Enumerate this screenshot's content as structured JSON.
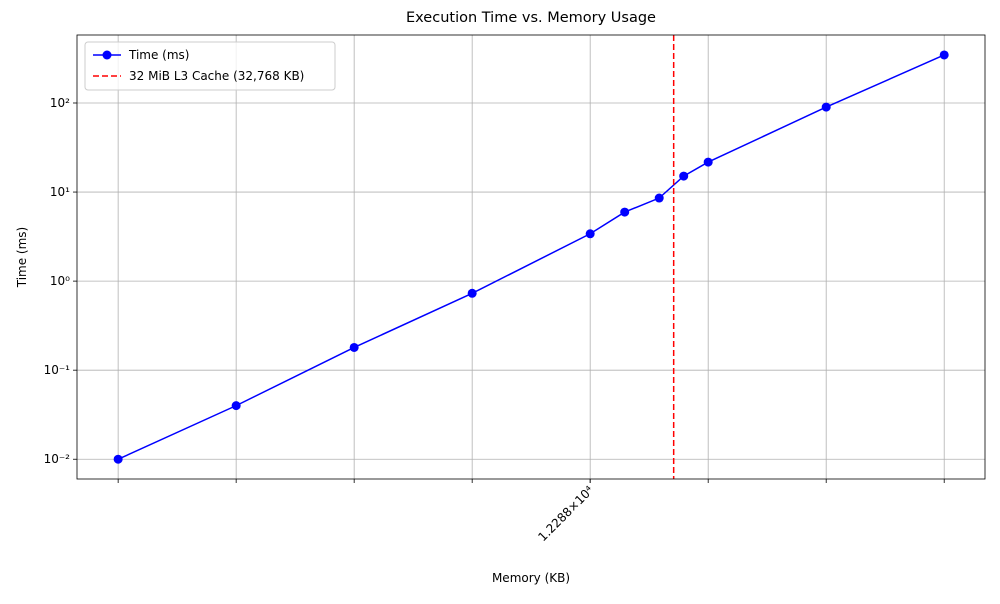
{
  "chart_data": {
    "type": "line",
    "title": "Execution Time vs. Memory Usage",
    "x_label": "Memory (KB)",
    "y_label": "Time (ms)",
    "x": [
      48,
      192,
      768,
      3072,
      12288,
      18432,
      27648,
      36864,
      49152,
      196608,
      786432
    ],
    "series": [
      {
        "name": "Time (ms)",
        "color": "#0000ff",
        "values": [
          0.01,
          0.04,
          0.18,
          0.73,
          3.4,
          5.96,
          8.57,
          15.1,
          21.7,
          90,
          346
        ]
      }
    ],
    "vlines": [
      {
        "name": "32 MiB L3 Cache (32,768 KB)",
        "x": 32768,
        "color": "#ff0000"
      }
    ],
    "xlog": true,
    "ylog": true,
    "xlim": [
      29.6,
      1270000
    ],
    "ylim": [
      0.006,
      580
    ],
    "xgrid": [
      48,
      192,
      768,
      3072,
      12288,
      49152,
      196608,
      786432
    ],
    "xticks": [
      {
        "value": 12288,
        "label": "1.2288×10⁴"
      }
    ],
    "yticks": [
      {
        "value": 0.01,
        "label": "10⁻²"
      },
      {
        "value": 0.1,
        "label": "10⁻¹"
      },
      {
        "value": 1,
        "label": "10⁰"
      },
      {
        "value": 10,
        "label": "10¹"
      },
      {
        "value": 100,
        "label": "10²"
      }
    ],
    "grid": true,
    "legend": "upper left"
  }
}
